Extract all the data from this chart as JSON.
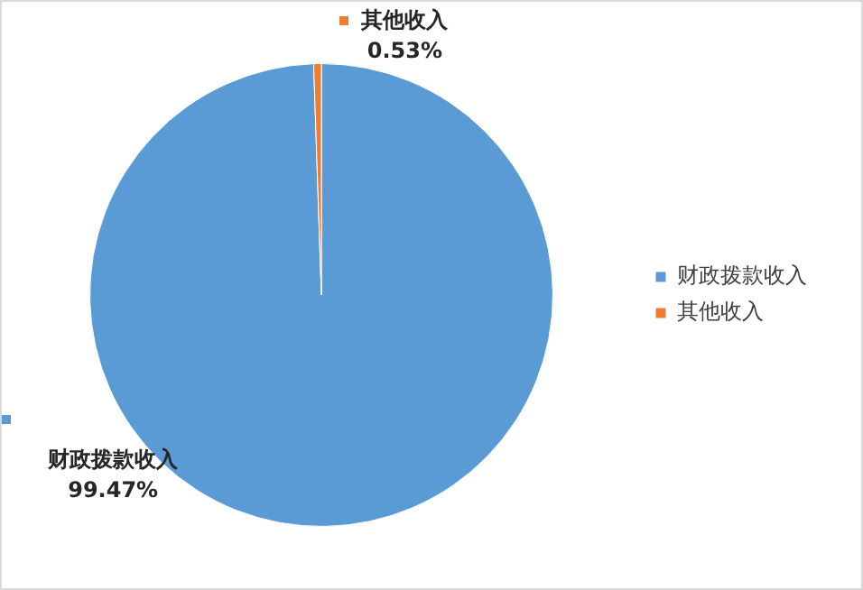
{
  "chart_data": {
    "type": "pie",
    "categories": [
      "财政拨款收入",
      "其他收入"
    ],
    "values": [
      99.47,
      0.53
    ],
    "colors": [
      "#5b9bd5",
      "#ed7d31"
    ],
    "value_labels": [
      "99.47%",
      "0.53%"
    ],
    "legend": "right"
  }
}
